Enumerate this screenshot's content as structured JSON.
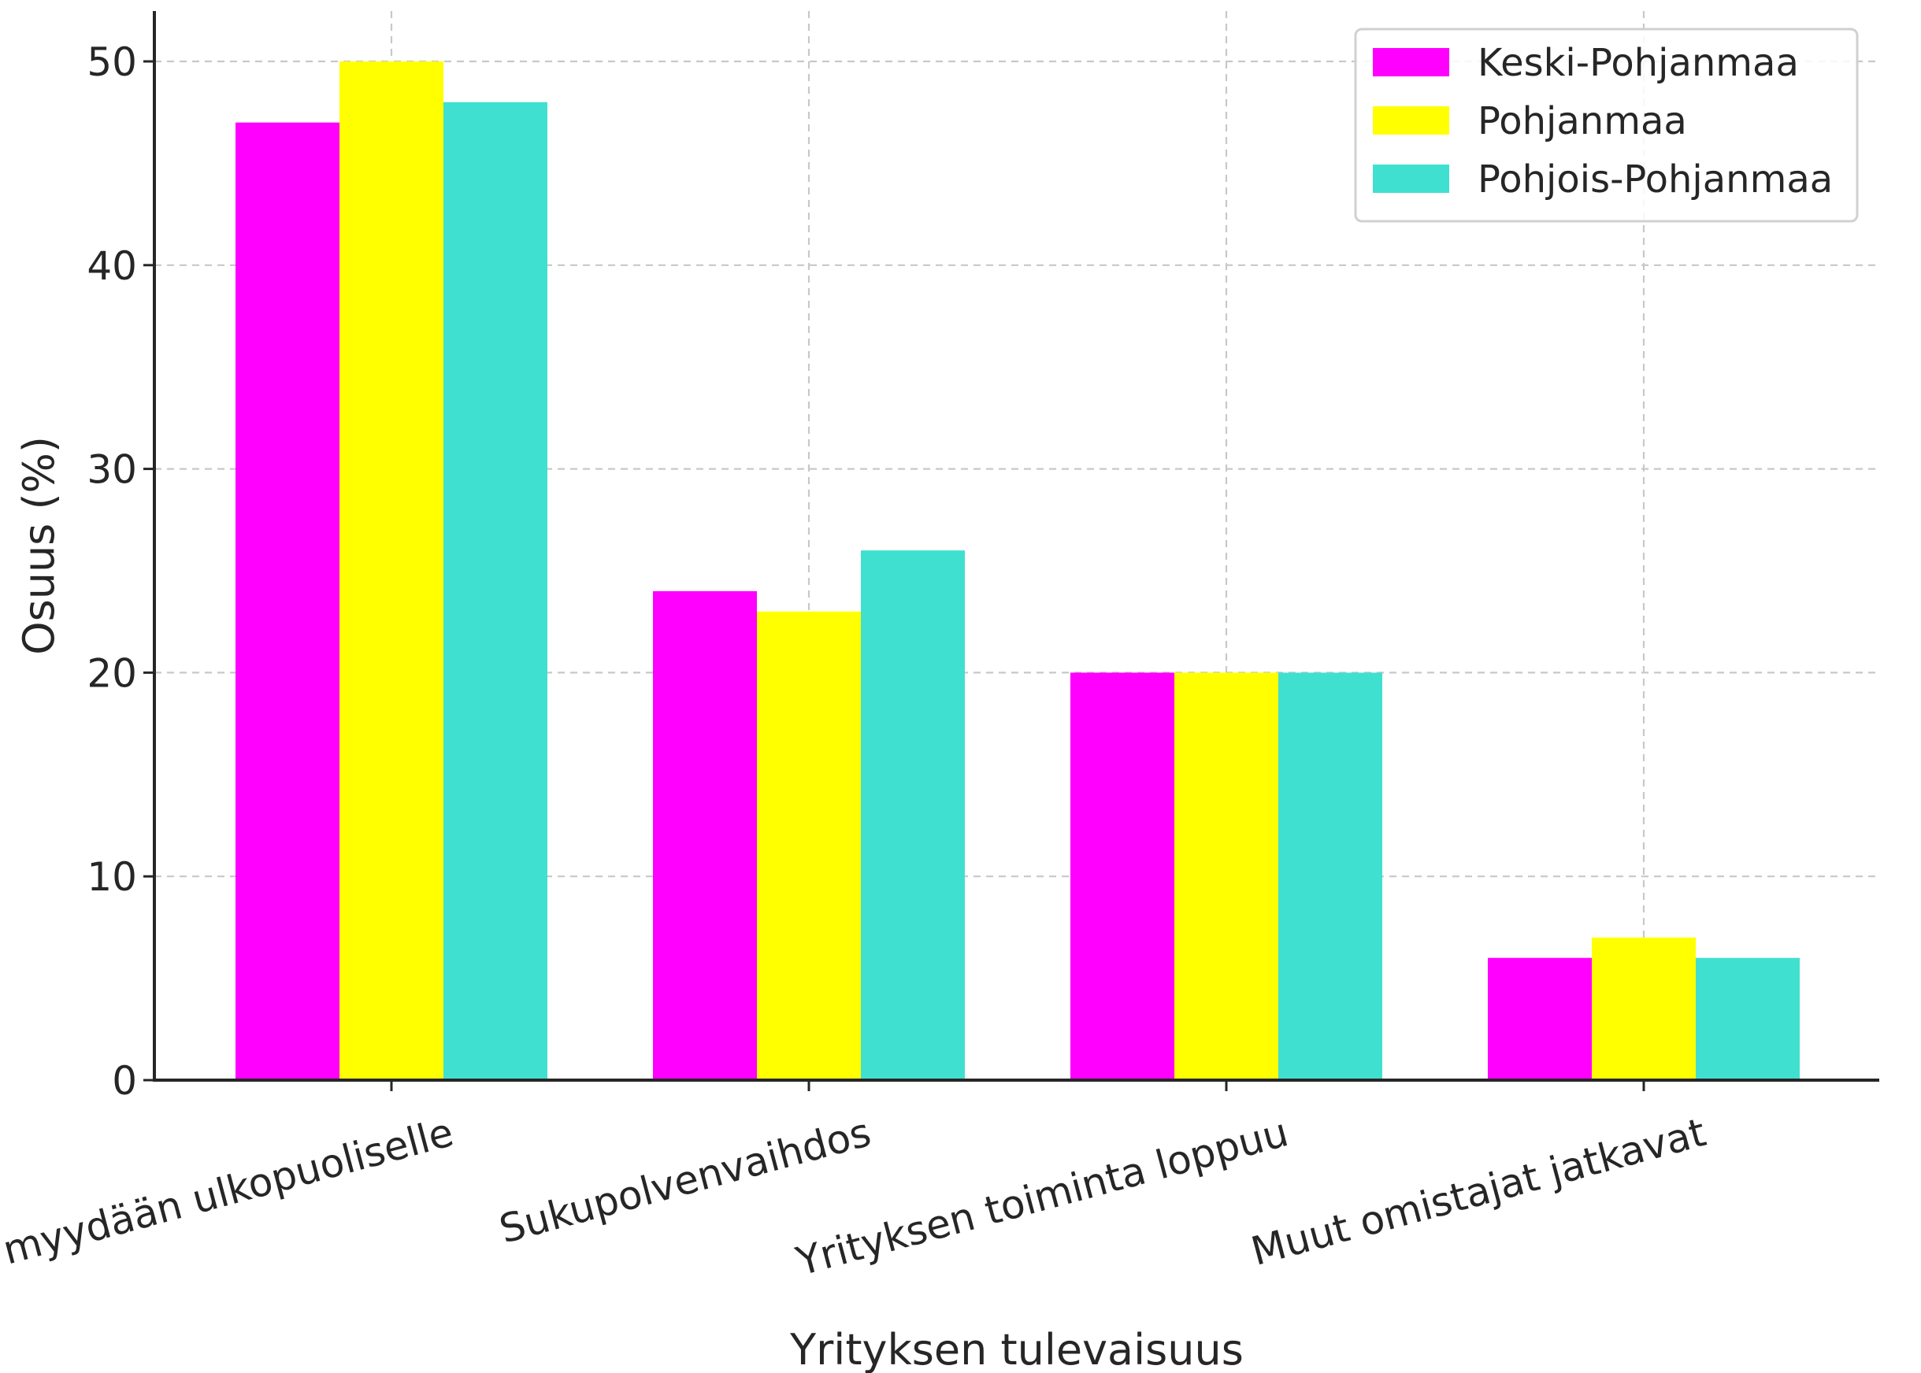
{
  "chart_data": {
    "type": "bar",
    "title": "",
    "xlabel": "Yrityksen tulevaisuus",
    "ylabel": "Osuus (%)",
    "categories": [
      "Yritys myydään ulkopuoliselle",
      "Sukupolvenvaihdos",
      "Yrityksen toiminta loppuu",
      "Muut omistajat jatkavat"
    ],
    "series": [
      {
        "name": "Keski-Pohjanmaa",
        "color": "#ff00ff",
        "values": [
          47,
          24,
          20,
          6
        ]
      },
      {
        "name": "Pohjanmaa",
        "color": "#ffff00",
        "values": [
          50,
          23,
          20,
          7
        ]
      },
      {
        "name": "Pohjois-Pohjanmaa",
        "color": "#40e0d0",
        "values": [
          48,
          26,
          20,
          6
        ]
      }
    ],
    "ylim": [
      0,
      52.5
    ],
    "yticks": [
      0,
      10,
      20,
      30,
      40,
      50
    ],
    "grid": true,
    "legend_position": "top-right"
  }
}
